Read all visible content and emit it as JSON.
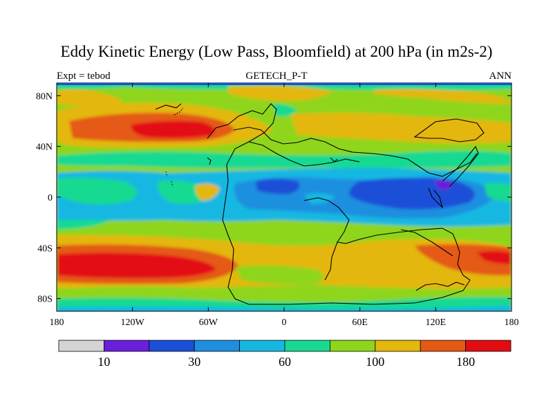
{
  "title": "Eddy Kinetic Energy (Low Pass, Bloomfield) at 200 hPa (in m2s-2)",
  "subtitle_left": "Expt = tebod",
  "subtitle_center": "GETECH_P-T",
  "subtitle_right": "ANN",
  "x_ticks": [
    "180",
    "120W",
    "60W",
    "0",
    "60E",
    "120E",
    "180"
  ],
  "y_ticks": [
    "80N",
    "40N",
    "0",
    "40S",
    "80S"
  ],
  "colorbar": {
    "colors": [
      "#d4d4d4",
      "#6a1fdb",
      "#1c4fd8",
      "#1e8fdf",
      "#16b8e2",
      "#19d992",
      "#8ed51c",
      "#e3b70b",
      "#e45a13",
      "#e30c12"
    ],
    "labels": [
      "10",
      "30",
      "60",
      "100",
      "180"
    ]
  },
  "chart_data": {
    "type": "heatmap",
    "title": "Eddy Kinetic Energy (Low Pass, Bloomfield) at 200 hPa (in m2s-2)",
    "units": "m2s-2",
    "xlim": [
      -180,
      180
    ],
    "ylim": [
      -90,
      90
    ],
    "x_ticks": [
      "180",
      "120W",
      "60W",
      "0",
      "60E",
      "120E",
      "180"
    ],
    "y_ticks": [
      "80N",
      "40N",
      "0",
      "40S",
      "80S"
    ],
    "colorbar_labels": [
      "10",
      "30",
      "60",
      "100",
      "180"
    ]
  }
}
